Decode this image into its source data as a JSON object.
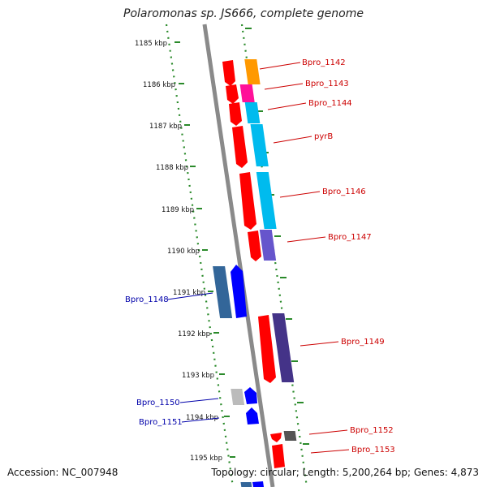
{
  "title": "Polaromonas sp. JS666, complete genome",
  "accession": "Accession: NC_007948",
  "topology": "Topology: circular; Length: 5,200,264 bp; Genes: 4,873",
  "colors": {
    "backbone": "#8a8a8a",
    "tick_dots": "#2a8a2a",
    "label_forward": "#cc0000",
    "label_reverse": "#0000aa"
  },
  "kbp_labels": [
    "1185 kbp",
    "1186 kbp",
    "1187 kbp",
    "1188 kbp",
    "1189 kbp",
    "1190 kbp",
    "1191 kbp",
    "1192 kbp",
    "1193 kbp",
    "1194 kbp",
    "1195 kbp"
  ],
  "genes_reverse_labels": [
    {
      "label": "Bpro_1148",
      "color": "#0000aa"
    },
    {
      "label": "Bpro_1150",
      "color": "#0000aa"
    },
    {
      "label": "Bpro_1151",
      "color": "#0000aa"
    }
  ],
  "genes_forward_labels": [
    {
      "label": "Bpro_1142",
      "color": "#cc0000"
    },
    {
      "label": "Bpro_1143",
      "color": "#cc0000"
    },
    {
      "label": "Bpro_1144",
      "color": "#cc0000"
    },
    {
      "label": "pyrB",
      "color": "#cc0000"
    },
    {
      "label": "Bpro_1146",
      "color": "#cc0000"
    },
    {
      "label": "Bpro_1147",
      "color": "#cc0000"
    },
    {
      "label": "Bpro_1149",
      "color": "#cc0000"
    },
    {
      "label": "Bpro_1152",
      "color": "#cc0000"
    },
    {
      "label": "Bpro_1153",
      "color": "#cc0000"
    }
  ]
}
